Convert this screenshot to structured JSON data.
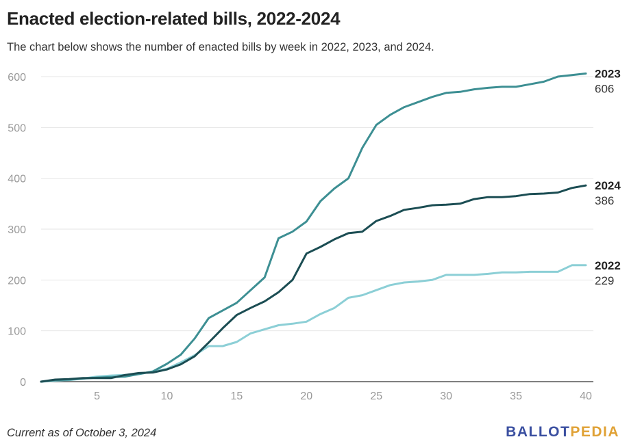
{
  "title": "Enacted election-related bills, 2022-2024",
  "subtitle": "The chart below shows the number of enacted bills by week in 2022, 2023, and 2024.",
  "footnote": "Current as of October 3, 2024",
  "logo": {
    "part1": "BALLOT",
    "part2": "PEDIA"
  },
  "colors": {
    "s2022": "#8ccfd6",
    "s2023": "#3d8f93",
    "s2024": "#1b4d53",
    "grid": "#e6e6e6",
    "tick": "#999999",
    "logo_primary": "#3a4fa0",
    "logo_accent": "#e0a236"
  },
  "chart_data": {
    "type": "line",
    "xlim": [
      1,
      40
    ],
    "ylim": [
      0,
      600
    ],
    "grid": true,
    "x_ticks": [
      "5",
      "10",
      "15",
      "20",
      "25",
      "30",
      "35",
      "40"
    ],
    "y_ticks": [
      "0",
      "100",
      "200",
      "300",
      "400",
      "500",
      "600"
    ],
    "x": [
      1,
      2,
      3,
      4,
      5,
      6,
      7,
      8,
      9,
      10,
      11,
      12,
      13,
      14,
      15,
      16,
      17,
      18,
      19,
      20,
      21,
      22,
      23,
      24,
      25,
      26,
      27,
      28,
      29,
      30,
      31,
      32,
      33,
      34,
      35,
      36,
      37,
      38,
      39,
      40
    ],
    "series": [
      {
        "name": "2023",
        "end_label": "606",
        "color_key": "s2023",
        "values": [
          0,
          3,
          4,
          6,
          8,
          9,
          10,
          15,
          20,
          35,
          53,
          85,
          125,
          140,
          155,
          180,
          205,
          282,
          295,
          315,
          355,
          380,
          400,
          460,
          505,
          525,
          540,
          550,
          560,
          568,
          570,
          575,
          578,
          580,
          580,
          585,
          590,
          600,
          603,
          606
        ]
      },
      {
        "name": "2024",
        "end_label": "386",
        "color_key": "s2024",
        "values": [
          0,
          4,
          5,
          7,
          7,
          7,
          13,
          17,
          18,
          24,
          34,
          50,
          77,
          105,
          131,
          145,
          158,
          176,
          200,
          252,
          265,
          280,
          292,
          295,
          316,
          326,
          338,
          342,
          347,
          348,
          350,
          359,
          363,
          363,
          365,
          369,
          370,
          372,
          381,
          386
        ]
      },
      {
        "name": "2022",
        "end_label": "229",
        "color_key": "s2022",
        "values": [
          0,
          2,
          3,
          6,
          10,
          12,
          13,
          15,
          20,
          25,
          38,
          52,
          70,
          70,
          78,
          95,
          103,
          111,
          114,
          118,
          133,
          145,
          165,
          170,
          180,
          190,
          195,
          197,
          200,
          210,
          210,
          210,
          212,
          215,
          215,
          216,
          216,
          216,
          229,
          229
        ]
      }
    ]
  }
}
